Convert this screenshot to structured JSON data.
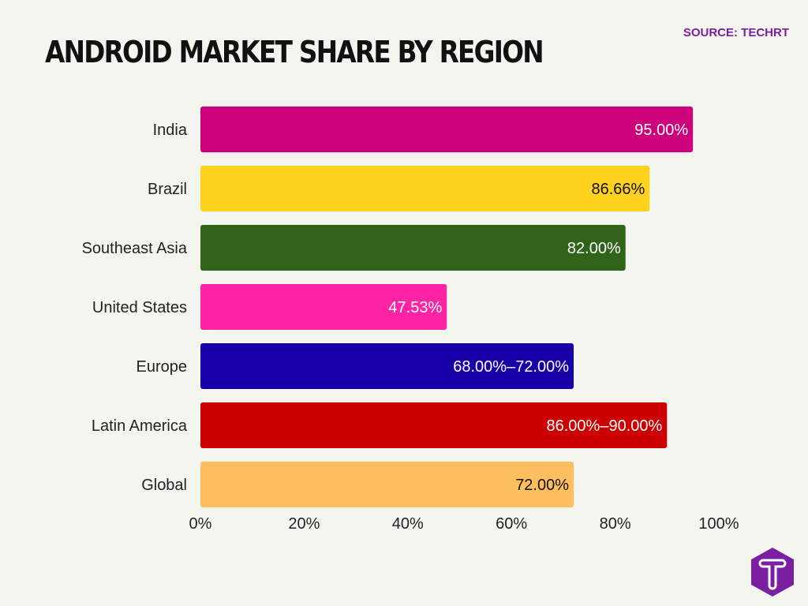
{
  "header": {
    "title": "ANDROID MARKET SHARE BY REGION",
    "source": "SOURCE: TECHRT"
  },
  "chart_data": {
    "type": "bar",
    "orientation": "horizontal",
    "title": "ANDROID MARKET SHARE BY REGION",
    "xlabel": "",
    "ylabel": "",
    "categories": [
      "India",
      "Brazil",
      "Southeast Asia",
      "United States",
      "Europe",
      "Latin America",
      "Global"
    ],
    "values": [
      95,
      86.66,
      82,
      47.53,
      72,
      90,
      72
    ],
    "data_labels": [
      "95.00%",
      "86.66%",
      "82.00%",
      "47.53%",
      "68.00%–72.00%",
      "86.00%–90.00%",
      "72.00%"
    ],
    "colors": [
      "#cc007a",
      "#ffd21f",
      "#2f6419",
      "#ff24a6",
      "#1800a8",
      "#cc0000",
      "#ffbf5e"
    ],
    "label_colors": [
      "#ffffff",
      "#111111",
      "#ffffff",
      "#ffffff",
      "#ffffff",
      "#ffffff",
      "#111111"
    ],
    "xlim": [
      0,
      100
    ],
    "xticks": [
      "0%",
      "20%",
      "40%",
      "60%",
      "80%",
      "100%"
    ],
    "grid": false,
    "legend": "none"
  },
  "logo": {
    "letter": "T",
    "color": "#7a1fa0"
  }
}
